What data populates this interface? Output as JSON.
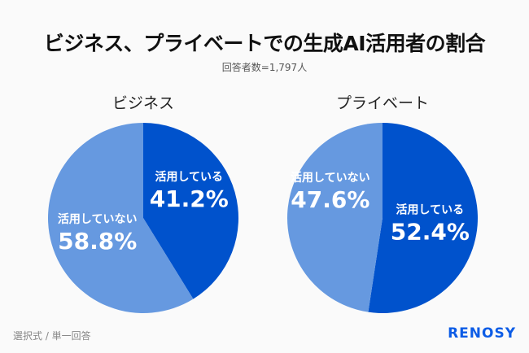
{
  "title": "ビジネス、プライベートでの生成AI活用者の割合",
  "subtitle": "回答者数=1,797人",
  "footer_note": "選択式 / 単一回答",
  "logo": "RENOSY",
  "colors": {
    "used": "#0052cc",
    "not_used": "#6699e0",
    "logo": "#0c5ce6"
  },
  "chart_data": [
    {
      "type": "pie",
      "title": "ビジネス",
      "categories": [
        "活用している",
        "活用していない"
      ],
      "values": [
        41.2,
        58.8
      ],
      "data_labels": [
        "41.2%",
        "58.8%"
      ]
    },
    {
      "type": "pie",
      "title": "プライベート",
      "categories": [
        "活用している",
        "活用していない"
      ],
      "values": [
        52.4,
        47.6
      ],
      "data_labels": [
        "52.4%",
        "47.6%"
      ]
    }
  ]
}
